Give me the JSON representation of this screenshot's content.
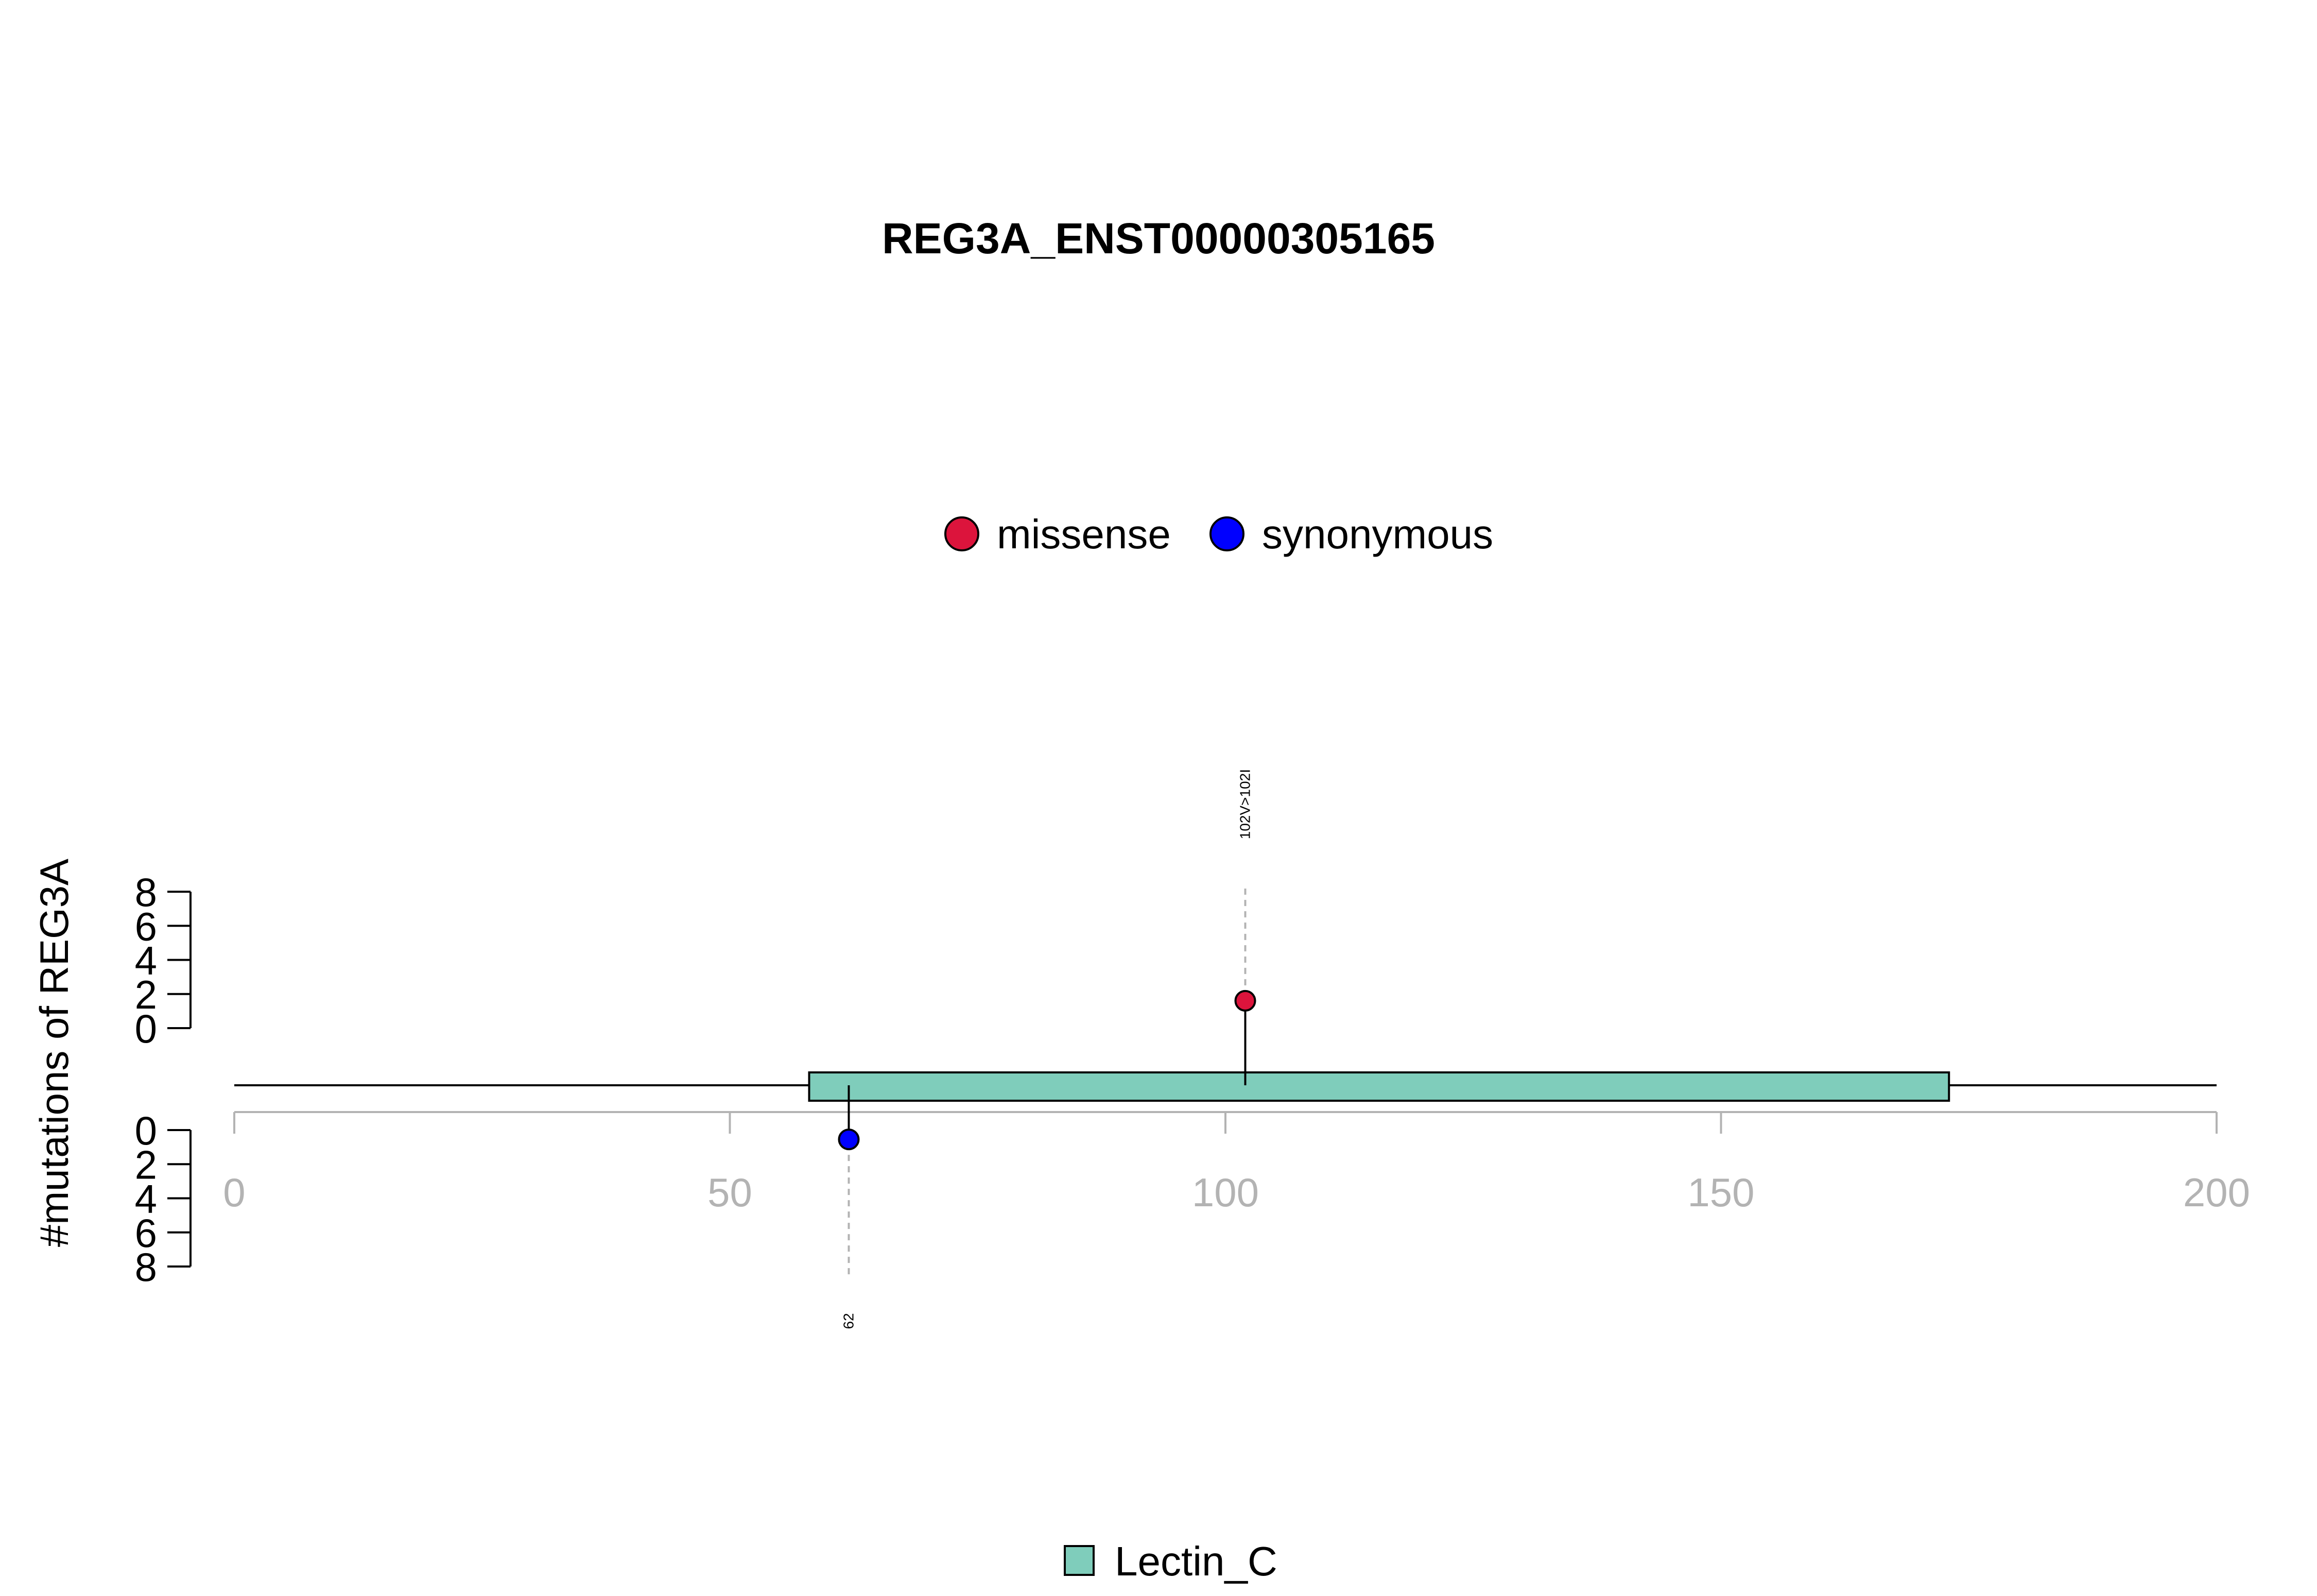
{
  "chart_data": {
    "type": "lollipop",
    "title": "REG3A_ENST00000305165",
    "ylabel": "#mutations of REG3A",
    "xlim": [
      0,
      200
    ],
    "x_ticks": [
      "0",
      "50",
      "100",
      "150",
      "200"
    ],
    "y_ticks": [
      "0",
      "2",
      "4",
      "6",
      "8"
    ],
    "ylim": [
      0,
      8
    ],
    "protein_length": 200,
    "legend_mutations": [
      {
        "label": "missense",
        "color": "#DC143C"
      },
      {
        "label": "synonymous",
        "color": "#0000FF"
      }
    ],
    "domains": [
      {
        "name": "Lectin_C",
        "start": 58,
        "end": 173,
        "color": "#7FCDBB"
      }
    ],
    "mutations": [
      {
        "position": 102,
        "count": 1,
        "type": "missense",
        "label": "102V>102I",
        "side": "top",
        "color": "#DC143C"
      },
      {
        "position": 62,
        "count": 1,
        "type": "synonymous",
        "label": "62",
        "side": "bottom",
        "color": "#0000FF"
      }
    ]
  }
}
